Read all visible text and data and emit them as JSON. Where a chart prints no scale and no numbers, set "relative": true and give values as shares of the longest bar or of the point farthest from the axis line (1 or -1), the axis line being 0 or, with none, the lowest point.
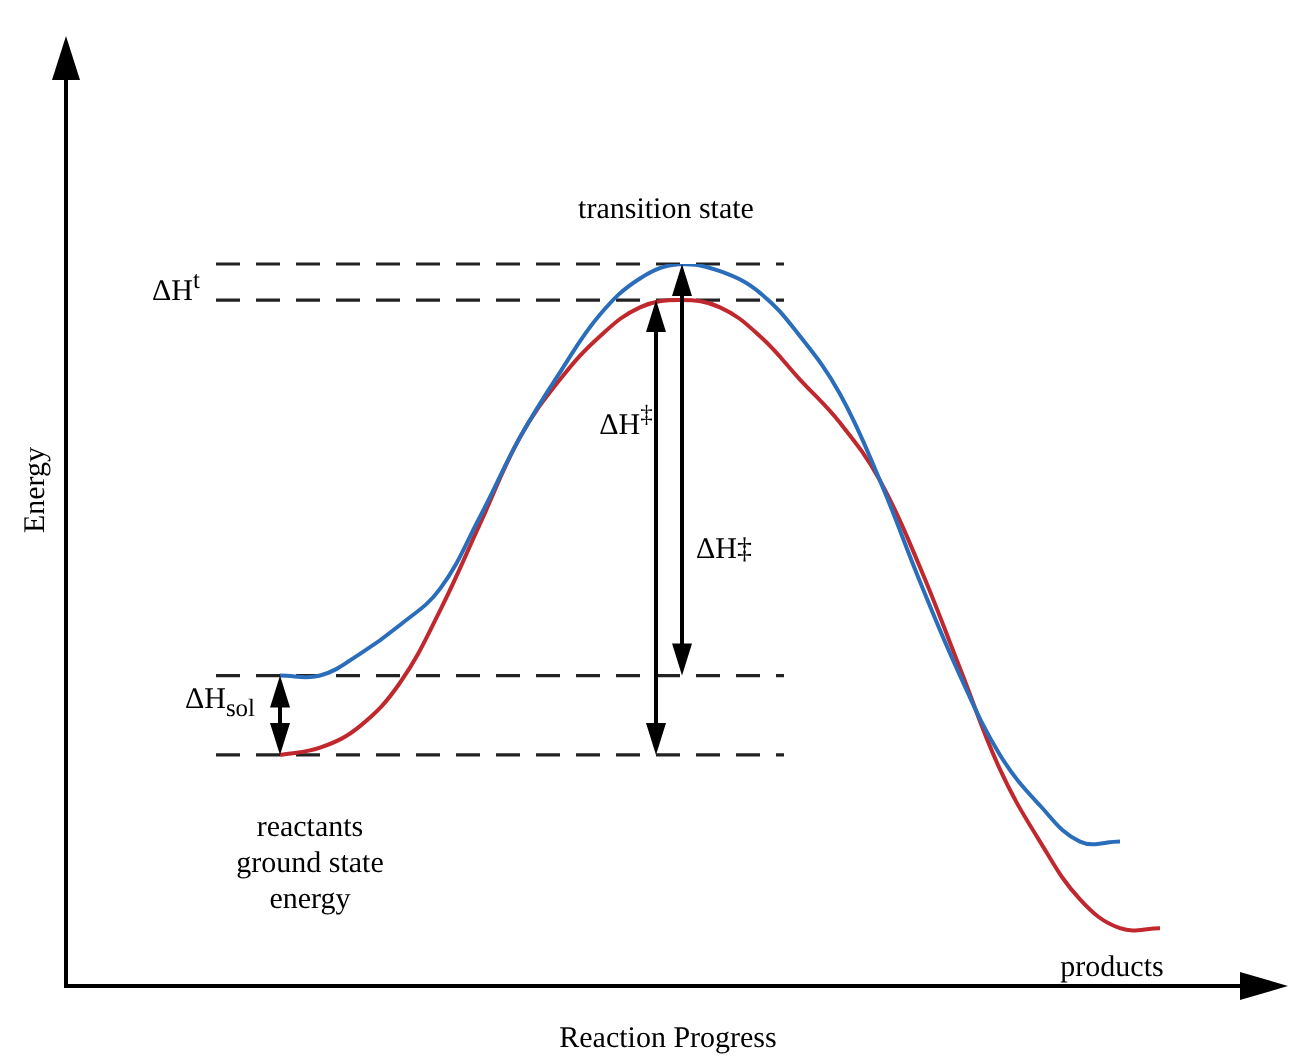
{
  "chart_data": {
    "type": "line",
    "relative": true,
    "xlabel": "Reaction Progress",
    "categories": [
      null,
      null,
      null,
      null,
      null,
      null,
      null,
      null,
      null,
      null,
      null,
      null,
      null,
      null,
      null,
      null,
      null,
      null,
      null,
      null,
      null,
      null,
      null
    ],
    "series": [
      {
        "color": "#2a6ebb",
        "values": [
          0.43,
          0.43,
          0.46,
          0.5,
          0.55,
          0.65,
          0.76,
          0.85,
          0.93,
          0.98,
          1.0,
          0.99,
          0.96,
          0.9,
          0.82,
          0.7,
          0.56,
          0.43,
          0.32,
          0.25,
          0.2,
          0.2,
          null
        ]
      },
      {
        "color": "#c0282d",
        "values": [
          0.32,
          0.33,
          0.36,
          0.42,
          0.52,
          0.64,
          0.76,
          0.84,
          0.9,
          0.94,
          0.95,
          0.94,
          0.9,
          0.84,
          0.78,
          0.7,
          0.58,
          0.44,
          0.3,
          0.2,
          0.12,
          0.08,
          0.08
        ]
      }
    ],
    "ref_lines": [
      {
        "axis": "y",
        "value": 1.0,
        "color": "#222222",
        "line_style": "dashed"
      },
      {
        "axis": "y",
        "value": 0.95,
        "color": "#222222",
        "line_style": "dashed"
      },
      {
        "axis": "y",
        "value": 0.43,
        "color": "#222222",
        "line_style": "dashed"
      },
      {
        "axis": "y",
        "value": 0.32,
        "color": "#222222",
        "line_style": "dashed"
      }
    ],
    "annotations": [
      "transition state",
      "ΔH$^{t}$",
      "ΔH$^{‡}$",
      "ΔH‡",
      "ΔH$_{sol}$",
      "reactants\nground state\nenergy",
      "products",
      "Energy"
    ],
    "grid": false,
    "legend": false,
    "marker": "none",
    "line_style": "solid"
  }
}
